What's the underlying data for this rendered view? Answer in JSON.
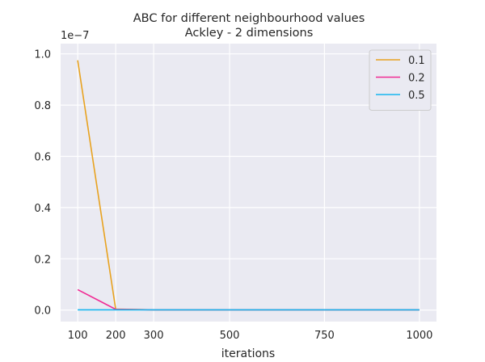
{
  "chart_data": {
    "type": "line",
    "title": "ABC for different neighbourhood values",
    "subtitle": "Ackley - 2 dimensions",
    "xlabel": "iterations",
    "ylabel": "",
    "offset_text": "1e−7",
    "x": [
      100,
      200,
      300,
      500,
      750,
      1000
    ],
    "xticks": [
      100,
      200,
      300,
      500,
      750,
      1000
    ],
    "xtick_labels": [
      "100",
      "200",
      "300",
      "500",
      "750",
      "1000"
    ],
    "xlim": [
      55,
      1045
    ],
    "yticks": [
      0.0,
      0.2,
      0.4,
      0.6,
      0.8,
      1.0
    ],
    "ytick_labels": [
      "0.0",
      "0.2",
      "0.4",
      "0.6",
      "0.8",
      "1.0"
    ],
    "ylim": [
      -0.045,
      1.04
    ],
    "grid": true,
    "legend_position": "top-right",
    "series": [
      {
        "name": "0.1",
        "color": "#e8a21f",
        "values": [
          0.975,
          0.004,
          0.001,
          0.001,
          0.001,
          0.001
        ]
      },
      {
        "name": "0.2",
        "color": "#f02b94",
        "values": [
          0.08,
          0.003,
          0.001,
          0.001,
          0.001,
          0.001
        ]
      },
      {
        "name": "0.5",
        "color": "#18b6ef",
        "values": [
          0.001,
          0.001,
          0.001,
          0.001,
          0.001,
          0.001
        ]
      }
    ]
  }
}
